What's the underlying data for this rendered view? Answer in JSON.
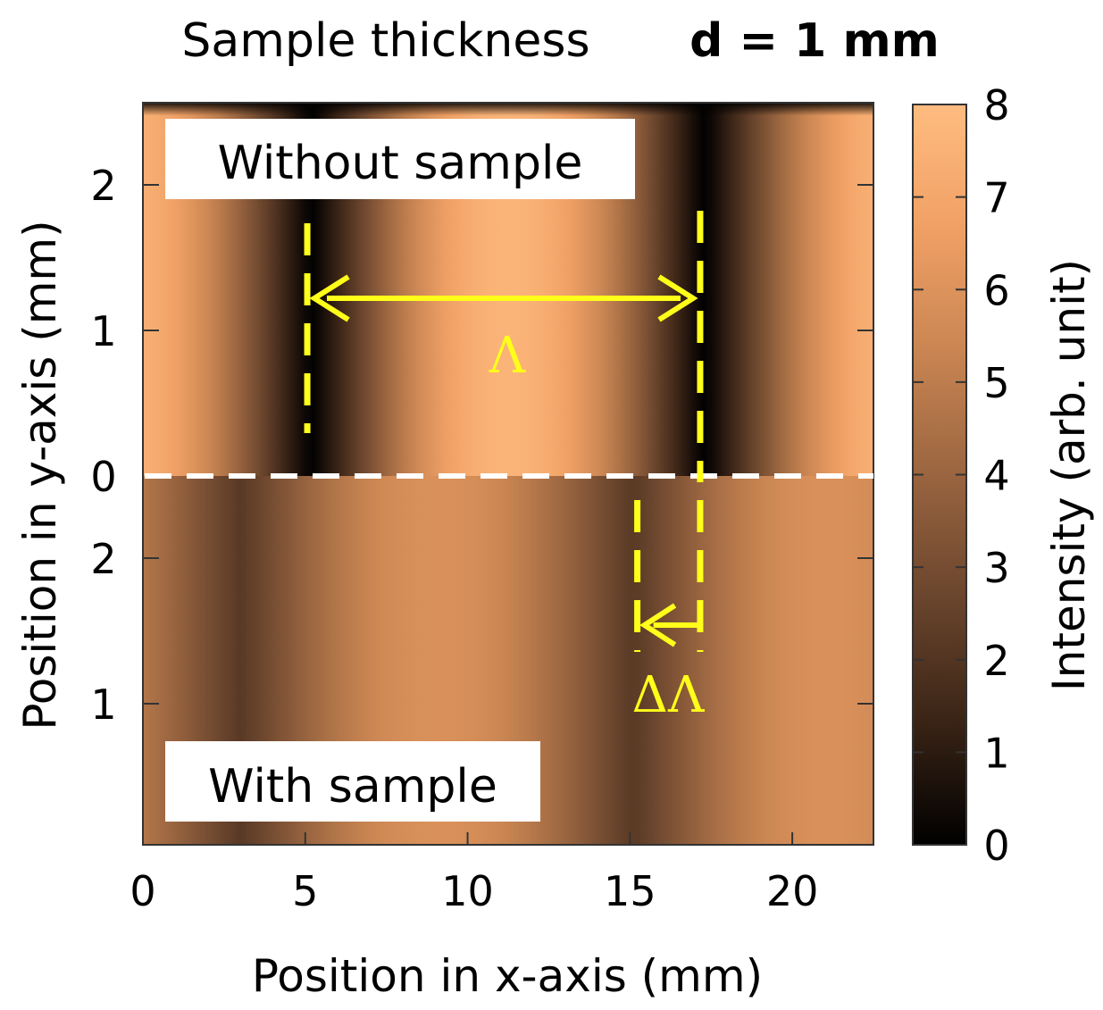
{
  "title": {
    "prefix": "Sample thickness",
    "value": "d = 1 mm"
  },
  "chart_data": {
    "type": "heatmap",
    "xlabel": "Position in x-axis (mm)",
    "ylabel": "Position in y-axis (mm)",
    "colorbar_label": "Intensity (arb. unit)",
    "xlim": [
      0,
      22.5
    ],
    "x_ticks": [
      "0",
      "5",
      "10",
      "15",
      "20"
    ],
    "y_ticks_top": [
      "0",
      "1",
      "2"
    ],
    "y_ticks_bottom": [
      "1",
      "2"
    ],
    "colorbar_ticks": [
      "0",
      "1",
      "2",
      "3",
      "4",
      "5",
      "6",
      "7",
      "8"
    ],
    "clim": [
      0,
      8
    ],
    "colormap": [
      "#000000",
      "#3a2416",
      "#6a452d",
      "#9a6540",
      "#c98552",
      "#f0a065",
      "#ffbc80"
    ],
    "panels": [
      {
        "name": "Without sample",
        "fringe_minima_x": [
          5.2,
          17.3
        ],
        "period_mm": 12.1,
        "intensity_min": 0,
        "intensity_max": 7.6
      },
      {
        "name": "With sample",
        "fringe_minima_x": [
          3.0,
          15.2
        ],
        "period_mm": 12.1,
        "intensity_min": 2.2,
        "intensity_max": 5.9
      }
    ],
    "annotations": [
      {
        "label": "Λ",
        "from_x": 5.2,
        "to_x": 17.3,
        "color": "#ffff1a"
      },
      {
        "label": "ΔΛ",
        "from_x": 17.3,
        "to_x": 15.2,
        "color": "#ffff1a"
      }
    ]
  }
}
